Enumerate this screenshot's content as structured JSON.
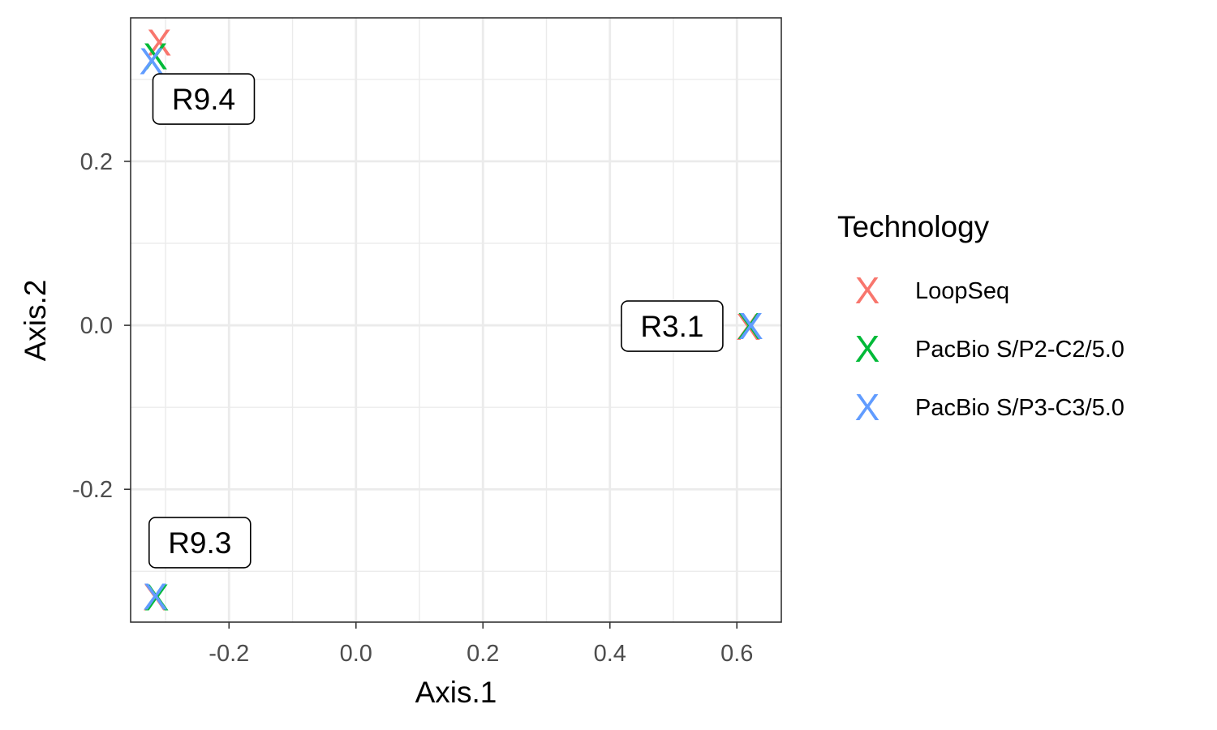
{
  "chart_data": {
    "type": "scatter",
    "title": "",
    "xlabel": "Axis.1",
    "ylabel": "Axis.2",
    "xlim": [
      -0.355,
      0.67
    ],
    "ylim": [
      -0.362,
      0.375
    ],
    "x_ticks": [
      -0.2,
      0.0,
      0.2,
      0.4,
      0.6
    ],
    "x_tick_labels": [
      "-0.2",
      "0.0",
      "0.2",
      "0.4",
      "0.6"
    ],
    "y_ticks": [
      -0.2,
      0.0,
      0.2
    ],
    "y_tick_labels": [
      "-0.2",
      "0.0",
      "0.2"
    ],
    "grid": true,
    "legend": {
      "title": "Technology",
      "position": "right"
    },
    "marker": "X",
    "series": [
      {
        "name": "LoopSeq",
        "color": "#F8766D",
        "points": [
          {
            "x": -0.31,
            "y": 0.345
          },
          {
            "x": 0.618,
            "y": -0.002
          },
          {
            "x": -0.316,
            "y": -0.332
          }
        ]
      },
      {
        "name": "PacBio S/P2-C2/5.0",
        "color": "#00BA38",
        "points": [
          {
            "x": -0.316,
            "y": 0.328
          },
          {
            "x": 0.62,
            "y": -0.001
          },
          {
            "x": -0.314,
            "y": -0.332
          }
        ]
      },
      {
        "name": "PacBio S/P3-C3/5.0",
        "color": "#619CFF",
        "points": [
          {
            "x": -0.322,
            "y": 0.322
          },
          {
            "x": 0.622,
            "y": -0.001
          },
          {
            "x": -0.316,
            "y": -0.331
          }
        ]
      }
    ],
    "annotations": [
      {
        "text": "R9.4",
        "x": -0.24,
        "y": 0.276
      },
      {
        "text": "R3.1",
        "x": 0.498,
        "y": -0.001
      },
      {
        "text": "R9.3",
        "x": -0.246,
        "y": -0.265
      }
    ]
  }
}
